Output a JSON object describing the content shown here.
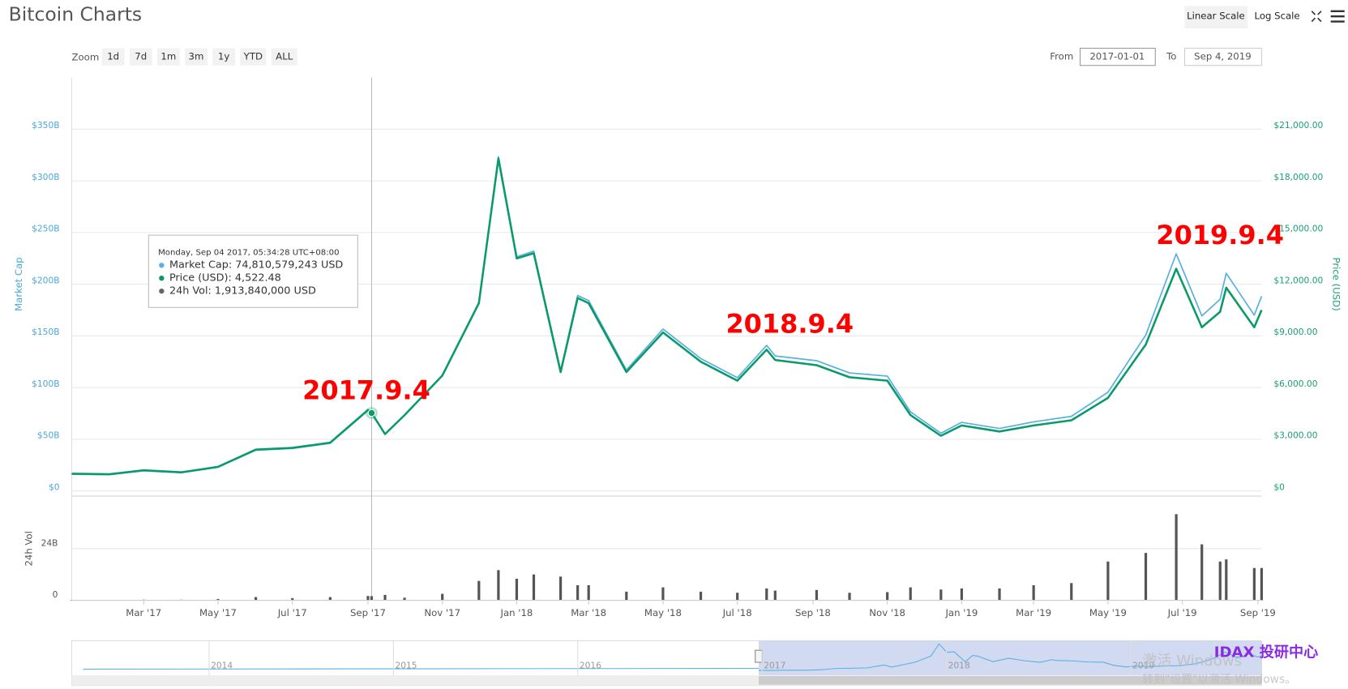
{
  "header": {
    "title": "Bitcoin Charts",
    "scale_buttons": [
      "Linear Scale",
      "Log Scale"
    ]
  },
  "zoom": {
    "label": "Zoom",
    "buttons": [
      "1d",
      "7d",
      "1m",
      "3m",
      "1y",
      "YTD",
      "ALL"
    ]
  },
  "range": {
    "from_label": "From",
    "from": "2017-01-01",
    "to_label": "To",
    "to": "Sep 4, 2019"
  },
  "tooltip": {
    "lines": [
      "Monday, Sep 04 2017, 05:34:28 UTC+08:00",
      "Market Cap: 74,810,579,243 USD",
      "Price (USD): 4,522.48",
      "24h Vol: 1,913,840,000 USD"
    ]
  },
  "annotations": [
    "2017.9.4",
    "2018.9.4",
    "2019.9.4"
  ],
  "navigator": {
    "labels": [
      "2014",
      "2015",
      "2016",
      "2017",
      "2018",
      "2019"
    ]
  },
  "watermarks": [
    "IDAX 投研中心",
    "激活 Windows",
    "转到\"设置\"以激活 Windows。"
  ],
  "chart_data": [
    {
      "type": "line",
      "ylabel": "Market Cap",
      "y2label": "Price (USD)",
      "x": [
        "2017-01-01",
        "2017-02-01",
        "2017-03-01",
        "2017-04-01",
        "2017-05-01",
        "2017-06-01",
        "2017-07-01",
        "2017-08-01",
        "2017-09-01",
        "2017-09-04",
        "2017-09-15",
        "2017-10-01",
        "2017-11-01",
        "2017-12-01",
        "2017-12-17",
        "2018-01-01",
        "2018-01-15",
        "2018-02-06",
        "2018-02-20",
        "2018-03-01",
        "2018-04-01",
        "2018-05-01",
        "2018-06-01",
        "2018-07-01",
        "2018-07-25",
        "2018-08-01",
        "2018-09-04",
        "2018-10-01",
        "2018-11-01",
        "2018-11-20",
        "2018-12-15",
        "2019-01-01",
        "2019-02-01",
        "2019-03-01",
        "2019-04-01",
        "2019-05-01",
        "2019-06-01",
        "2019-06-26",
        "2019-07-17",
        "2019-08-01",
        "2019-08-06",
        "2019-08-29",
        "2019-09-04"
      ],
      "xlim": [
        "2017-01-01",
        "2019-09-04"
      ],
      "series": [
        {
          "name": "Market Cap",
          "color": "#5ab0e0",
          "axis": "y",
          "values": [
            16.1,
            15.7,
            19.4,
            17.6,
            22.8,
            39.3,
            41.1,
            46.1,
            77.7,
            74.81,
            54.7,
            73.0,
            111.7,
            182.4,
            323.3,
            226.5,
            232.0,
            116.3,
            189.1,
            184.2,
            117.0,
            156.6,
            128.1,
            109.6,
            140.8,
            130.6,
            126.0,
            114.2,
            111.1,
            76.5,
            55.8,
            66.3,
            60.4,
            66.8,
            72.2,
            95.5,
            150.8,
            229.4,
            169.3,
            185.5,
            210.6,
            170.1,
            188.3
          ]
        },
        {
          "name": "Price (USD)",
          "color": "#0a9a6a",
          "axis": "y2",
          "values": [
            1000,
            970,
            1200,
            1080,
            1400,
            2400,
            2500,
            2800,
            4700,
            4522.48,
            3300,
            4400,
            6700,
            10900,
            19300,
            13500,
            13800,
            6900,
            11200,
            10900,
            6900,
            9200,
            7500,
            6400,
            8200,
            7600,
            7300,
            6600,
            6400,
            4400,
            3200,
            3800,
            3450,
            3800,
            4100,
            5400,
            8500,
            12900,
            9500,
            10400,
            11800,
            9500,
            10500
          ]
        }
      ],
      "ylim": [
        0,
        400
      ],
      "yticks": [
        {
          "value": 0,
          "label": "$0"
        },
        {
          "value": 50,
          "label": "$50B"
        },
        {
          "value": 100,
          "label": "$100B"
        },
        {
          "value": 150,
          "label": "$150B"
        },
        {
          "value": 200,
          "label": "$200B"
        },
        {
          "value": 250,
          "label": "$250B"
        },
        {
          "value": 300,
          "label": "$300B"
        },
        {
          "value": 350,
          "label": "$350B"
        }
      ],
      "y2lim": [
        0,
        24000
      ],
      "y2ticks": [
        {
          "value": 0,
          "label": "$0"
        },
        {
          "value": 3000,
          "label": "$3,000.00"
        },
        {
          "value": 6000,
          "label": "$6,000.00"
        },
        {
          "value": 9000,
          "label": "$9,000.00"
        },
        {
          "value": 12000,
          "label": "$12,000.00"
        },
        {
          "value": 15000,
          "label": "$15,000.00"
        },
        {
          "value": 18000,
          "label": "$18,000.00"
        },
        {
          "value": 21000,
          "label": "$21,000.00"
        }
      ],
      "grid": true
    },
    {
      "type": "bar",
      "ylabel": "24h Vol",
      "color": "#555555",
      "x": [
        "2017-01-01",
        "2017-02-01",
        "2017-03-01",
        "2017-04-01",
        "2017-05-01",
        "2017-06-01",
        "2017-07-01",
        "2017-08-01",
        "2017-09-01",
        "2017-09-04",
        "2017-09-15",
        "2017-10-01",
        "2017-11-01",
        "2017-12-01",
        "2017-12-17",
        "2018-01-01",
        "2018-01-15",
        "2018-02-06",
        "2018-02-20",
        "2018-03-01",
        "2018-04-01",
        "2018-05-01",
        "2018-06-01",
        "2018-07-01",
        "2018-07-25",
        "2018-08-01",
        "2018-09-04",
        "2018-10-01",
        "2018-11-01",
        "2018-11-20",
        "2018-12-15",
        "2019-01-01",
        "2019-02-01",
        "2019-03-01",
        "2019-04-01",
        "2019-05-01",
        "2019-06-01",
        "2019-06-26",
        "2019-07-17",
        "2019-08-01",
        "2019-08-06",
        "2019-08-29",
        "2019-09-04"
      ],
      "xlim": [
        "2017-01-01",
        "2019-09-04"
      ],
      "values": [
        0.2,
        0.15,
        0.3,
        0.3,
        0.6,
        1.5,
        1.0,
        1.5,
        2.0,
        1.91,
        2.5,
        1.2,
        3.0,
        9,
        14,
        10,
        12,
        11,
        7,
        7,
        4,
        6,
        4,
        3.5,
        5.5,
        4.5,
        4.8,
        3.5,
        3.8,
        6,
        5,
        5.5,
        5.5,
        7,
        8,
        18,
        22,
        40,
        26,
        18,
        19,
        15,
        15
      ],
      "ylim": [
        0,
        48
      ],
      "yticks": [
        0,
        {
          "value": 24,
          "label": "24B"
        }
      ],
      "xticks": [
        {
          "value": "2017-03-01",
          "label": "Mar '17"
        },
        {
          "value": "2017-05-01",
          "label": "May '17"
        },
        {
          "value": "2017-07-01",
          "label": "Jul '17"
        },
        {
          "value": "2017-09-01",
          "label": "Sep '17"
        },
        {
          "value": "2017-11-01",
          "label": "Nov '17"
        },
        {
          "value": "2018-01-01",
          "label": "Jan '18"
        },
        {
          "value": "2018-03-01",
          "label": "Mar '18"
        },
        {
          "value": "2018-05-01",
          "label": "May '18"
        },
        {
          "value": "2018-07-01",
          "label": "Jul '18"
        },
        {
          "value": "2018-09-01",
          "label": "Sep '18"
        },
        {
          "value": "2018-11-01",
          "label": "Nov '18"
        },
        {
          "value": "2019-01-01",
          "label": "Jan '19"
        },
        {
          "value": "2019-03-01",
          "label": "Mar '19"
        },
        {
          "value": "2019-05-01",
          "label": "May '19"
        },
        {
          "value": "2019-07-01",
          "label": "Jul '19"
        },
        {
          "value": "2019-09-01",
          "label": "Sep '19"
        }
      ],
      "grid": true
    }
  ]
}
